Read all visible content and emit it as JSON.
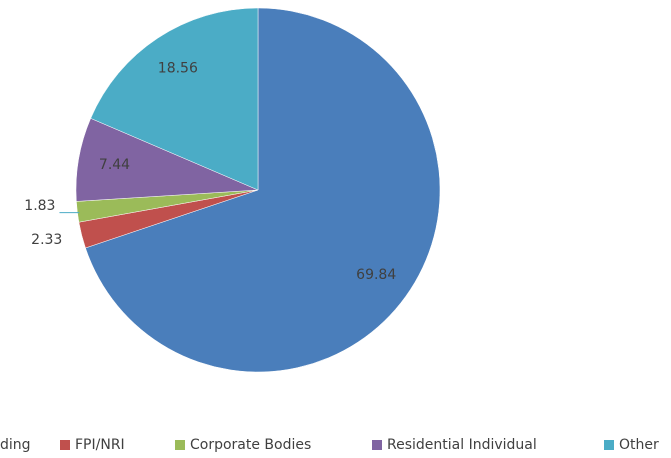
{
  "chart_data": {
    "type": "pie",
    "categories": [
      "ding",
      "FPI/NRI",
      "Corporate Bodies",
      "Residential Individual",
      "Other"
    ],
    "values": [
      69.84,
      2.33,
      1.83,
      7.44,
      18.56
    ],
    "colors": [
      "#4a7ebb",
      "#c0504d",
      "#9bbb59",
      "#8064a2",
      "#4bacc6"
    ],
    "legend": "bottom"
  }
}
